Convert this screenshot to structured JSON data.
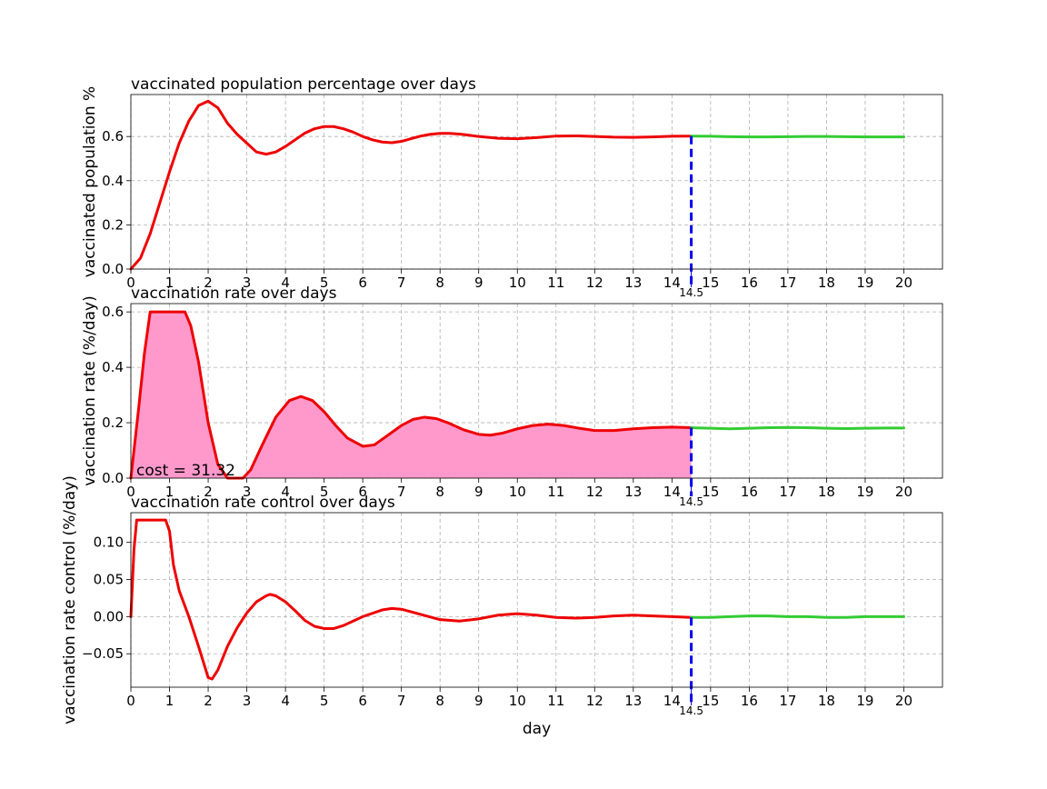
{
  "chart_data": [
    {
      "type": "line",
      "title": "vaccinated population percentage over days",
      "xlabel": "",
      "ylabel": "vaccinated population %",
      "xlim": [
        0,
        21
      ],
      "ylim": [
        0,
        0.79
      ],
      "xticks": [
        0,
        1,
        2,
        3,
        4,
        5,
        6,
        7,
        8,
        9,
        10,
        11,
        12,
        13,
        14,
        15,
        16,
        17,
        18,
        19,
        20
      ],
      "yticks": [
        0.0,
        0.2,
        0.4,
        0.6
      ],
      "ytick_labels": [
        "0.0",
        "0.2",
        "0.4",
        "0.6"
      ],
      "grid": true,
      "vline": {
        "x": 14.5,
        "label": "14.5",
        "color": "#0000ee"
      },
      "series": [
        {
          "color": "#ee0000",
          "points": [
            [
              0,
              0
            ],
            [
              0.25,
              0.05
            ],
            [
              0.5,
              0.16
            ],
            [
              0.75,
              0.3
            ],
            [
              1,
              0.44
            ],
            [
              1.25,
              0.57
            ],
            [
              1.5,
              0.67
            ],
            [
              1.75,
              0.74
            ],
            [
              2,
              0.76
            ],
            [
              2.25,
              0.73
            ],
            [
              2.5,
              0.66
            ],
            [
              2.75,
              0.61
            ],
            [
              3,
              0.57
            ],
            [
              3.25,
              0.53
            ],
            [
              3.5,
              0.52
            ],
            [
              3.75,
              0.53
            ],
            [
              4,
              0.555
            ],
            [
              4.25,
              0.585
            ],
            [
              4.5,
              0.615
            ],
            [
              4.75,
              0.635
            ],
            [
              5,
              0.645
            ],
            [
              5.25,
              0.645
            ],
            [
              5.5,
              0.635
            ],
            [
              5.75,
              0.62
            ],
            [
              6,
              0.6
            ],
            [
              6.25,
              0.585
            ],
            [
              6.5,
              0.575
            ],
            [
              6.75,
              0.572
            ],
            [
              7,
              0.578
            ],
            [
              7.25,
              0.59
            ],
            [
              7.5,
              0.602
            ],
            [
              7.75,
              0.61
            ],
            [
              8,
              0.614
            ],
            [
              8.25,
              0.614
            ],
            [
              8.5,
              0.611
            ],
            [
              8.75,
              0.606
            ],
            [
              9,
              0.6
            ],
            [
              9.5,
              0.592
            ],
            [
              10,
              0.59
            ],
            [
              10.5,
              0.595
            ],
            [
              11,
              0.602
            ],
            [
              11.5,
              0.603
            ],
            [
              12,
              0.6
            ],
            [
              12.5,
              0.597
            ],
            [
              13,
              0.596
            ],
            [
              13.5,
              0.598
            ],
            [
              14,
              0.601
            ],
            [
              14.5,
              0.602
            ]
          ]
        },
        {
          "color": "#33cc33",
          "points": [
            [
              14.5,
              0.602
            ],
            [
              15,
              0.601
            ],
            [
              15.5,
              0.599
            ],
            [
              16,
              0.598
            ],
            [
              16.5,
              0.598
            ],
            [
              17,
              0.599
            ],
            [
              17.5,
              0.6
            ],
            [
              18,
              0.6
            ],
            [
              18.5,
              0.599
            ],
            [
              19,
              0.598
            ],
            [
              19.5,
              0.598
            ],
            [
              20,
              0.598
            ]
          ]
        }
      ]
    },
    {
      "type": "area",
      "title": "vaccination rate over days",
      "xlabel": "",
      "ylabel": "vaccination rate (%/day)",
      "xlim": [
        0,
        21
      ],
      "ylim": [
        0,
        0.63
      ],
      "xticks": [
        0,
        1,
        2,
        3,
        4,
        5,
        6,
        7,
        8,
        9,
        10,
        11,
        12,
        13,
        14,
        15,
        16,
        17,
        18,
        19,
        20
      ],
      "yticks": [
        0.0,
        0.2,
        0.4,
        0.6
      ],
      "ytick_labels": [
        "0.0",
        "0.2",
        "0.4",
        "0.6"
      ],
      "grid": true,
      "fill_color": "#ff99cc",
      "fill_until": 14.5,
      "annotation": "cost = 31.32",
      "vline": {
        "x": 14.5,
        "label": "14.5",
        "color": "#0000ee"
      },
      "series": [
        {
          "color": "#ee0000",
          "points": [
            [
              0,
              0
            ],
            [
              0.2,
              0.25
            ],
            [
              0.35,
              0.45
            ],
            [
              0.5,
              0.6
            ],
            [
              1.4,
              0.6
            ],
            [
              1.55,
              0.55
            ],
            [
              1.75,
              0.42
            ],
            [
              2,
              0.2
            ],
            [
              2.25,
              0.05
            ],
            [
              2.5,
              0
            ],
            [
              2.9,
              0
            ],
            [
              3.1,
              0.03
            ],
            [
              3.4,
              0.12
            ],
            [
              3.75,
              0.22
            ],
            [
              4.1,
              0.28
            ],
            [
              4.4,
              0.295
            ],
            [
              4.7,
              0.28
            ],
            [
              5,
              0.24
            ],
            [
              5.3,
              0.19
            ],
            [
              5.6,
              0.145
            ],
            [
              6,
              0.115
            ],
            [
              6.3,
              0.12
            ],
            [
              6.6,
              0.15
            ],
            [
              7,
              0.19
            ],
            [
              7.3,
              0.212
            ],
            [
              7.6,
              0.22
            ],
            [
              7.9,
              0.215
            ],
            [
              8.2,
              0.2
            ],
            [
              8.6,
              0.175
            ],
            [
              9,
              0.158
            ],
            [
              9.3,
              0.155
            ],
            [
              9.6,
              0.162
            ],
            [
              10,
              0.178
            ],
            [
              10.4,
              0.19
            ],
            [
              10.8,
              0.195
            ],
            [
              11.2,
              0.19
            ],
            [
              11.6,
              0.18
            ],
            [
              12,
              0.172
            ],
            [
              12.5,
              0.172
            ],
            [
              13,
              0.178
            ],
            [
              13.5,
              0.182
            ],
            [
              14,
              0.184
            ],
            [
              14.5,
              0.182
            ]
          ]
        },
        {
          "color": "#33cc33",
          "points": [
            [
              14.5,
              0.182
            ],
            [
              15,
              0.18
            ],
            [
              15.5,
              0.178
            ],
            [
              16,
              0.18
            ],
            [
              16.5,
              0.182
            ],
            [
              17,
              0.183
            ],
            [
              17.5,
              0.182
            ],
            [
              18,
              0.18
            ],
            [
              18.5,
              0.179
            ],
            [
              19,
              0.18
            ],
            [
              19.5,
              0.181
            ],
            [
              20,
              0.181
            ]
          ]
        }
      ]
    },
    {
      "type": "line",
      "title": "vaccination rate control over days",
      "xlabel": "day",
      "ylabel": "vaccination rate control (%/day)",
      "xlim": [
        0,
        21
      ],
      "ylim": [
        -0.095,
        0.14
      ],
      "xticks": [
        0,
        1,
        2,
        3,
        4,
        5,
        6,
        7,
        8,
        9,
        10,
        11,
        12,
        13,
        14,
        15,
        16,
        17,
        18,
        19,
        20
      ],
      "yticks": [
        -0.05,
        0.0,
        0.05,
        0.1
      ],
      "ytick_labels": [
        "−0.05",
        "0.00",
        "0.05",
        "0.10"
      ],
      "grid": true,
      "vline": {
        "x": 14.5,
        "label": "14.5",
        "color": "#0000ee"
      },
      "series": [
        {
          "color": "#ee0000",
          "points": [
            [
              0,
              0
            ],
            [
              0.08,
              0.09
            ],
            [
              0.15,
              0.13
            ],
            [
              0.9,
              0.13
            ],
            [
              1,
              0.115
            ],
            [
              1.1,
              0.07
            ],
            [
              1.25,
              0.035
            ],
            [
              1.5,
              0
            ],
            [
              1.75,
              -0.04
            ],
            [
              2,
              -0.082
            ],
            [
              2.1,
              -0.084
            ],
            [
              2.25,
              -0.072
            ],
            [
              2.5,
              -0.04
            ],
            [
              2.75,
              -0.015
            ],
            [
              3,
              0.005
            ],
            [
              3.25,
              0.02
            ],
            [
              3.5,
              0.028
            ],
            [
              3.6,
              0.03
            ],
            [
              3.75,
              0.028
            ],
            [
              4,
              0.02
            ],
            [
              4.25,
              0.008
            ],
            [
              4.5,
              -0.005
            ],
            [
              4.75,
              -0.013
            ],
            [
              5,
              -0.016
            ],
            [
              5.25,
              -0.016
            ],
            [
              5.5,
              -0.012
            ],
            [
              6,
              0
            ],
            [
              6.5,
              0.009
            ],
            [
              6.75,
              0.011
            ],
            [
              7,
              0.01
            ],
            [
              7.5,
              0.003
            ],
            [
              8,
              -0.004
            ],
            [
              8.5,
              -0.006
            ],
            [
              9,
              -0.003
            ],
            [
              9.5,
              0.002
            ],
            [
              10,
              0.004
            ],
            [
              10.5,
              0.002
            ],
            [
              11,
              -0.001
            ],
            [
              11.5,
              -0.002
            ],
            [
              12,
              -0.001
            ],
            [
              12.5,
              0.001
            ],
            [
              13,
              0.002
            ],
            [
              13.5,
              0.001
            ],
            [
              14,
              0
            ],
            [
              14.5,
              -0.001
            ]
          ]
        },
        {
          "color": "#33cc33",
          "points": [
            [
              14.5,
              -0.001
            ],
            [
              15,
              -0.001
            ],
            [
              15.5,
              0
            ],
            [
              16,
              0.001
            ],
            [
              16.5,
              0.001
            ],
            [
              17,
              0
            ],
            [
              17.5,
              0
            ],
            [
              18,
              -0.001
            ],
            [
              18.5,
              -0.001
            ],
            [
              19,
              0
            ],
            [
              19.5,
              0
            ],
            [
              20,
              0
            ]
          ]
        }
      ]
    }
  ]
}
